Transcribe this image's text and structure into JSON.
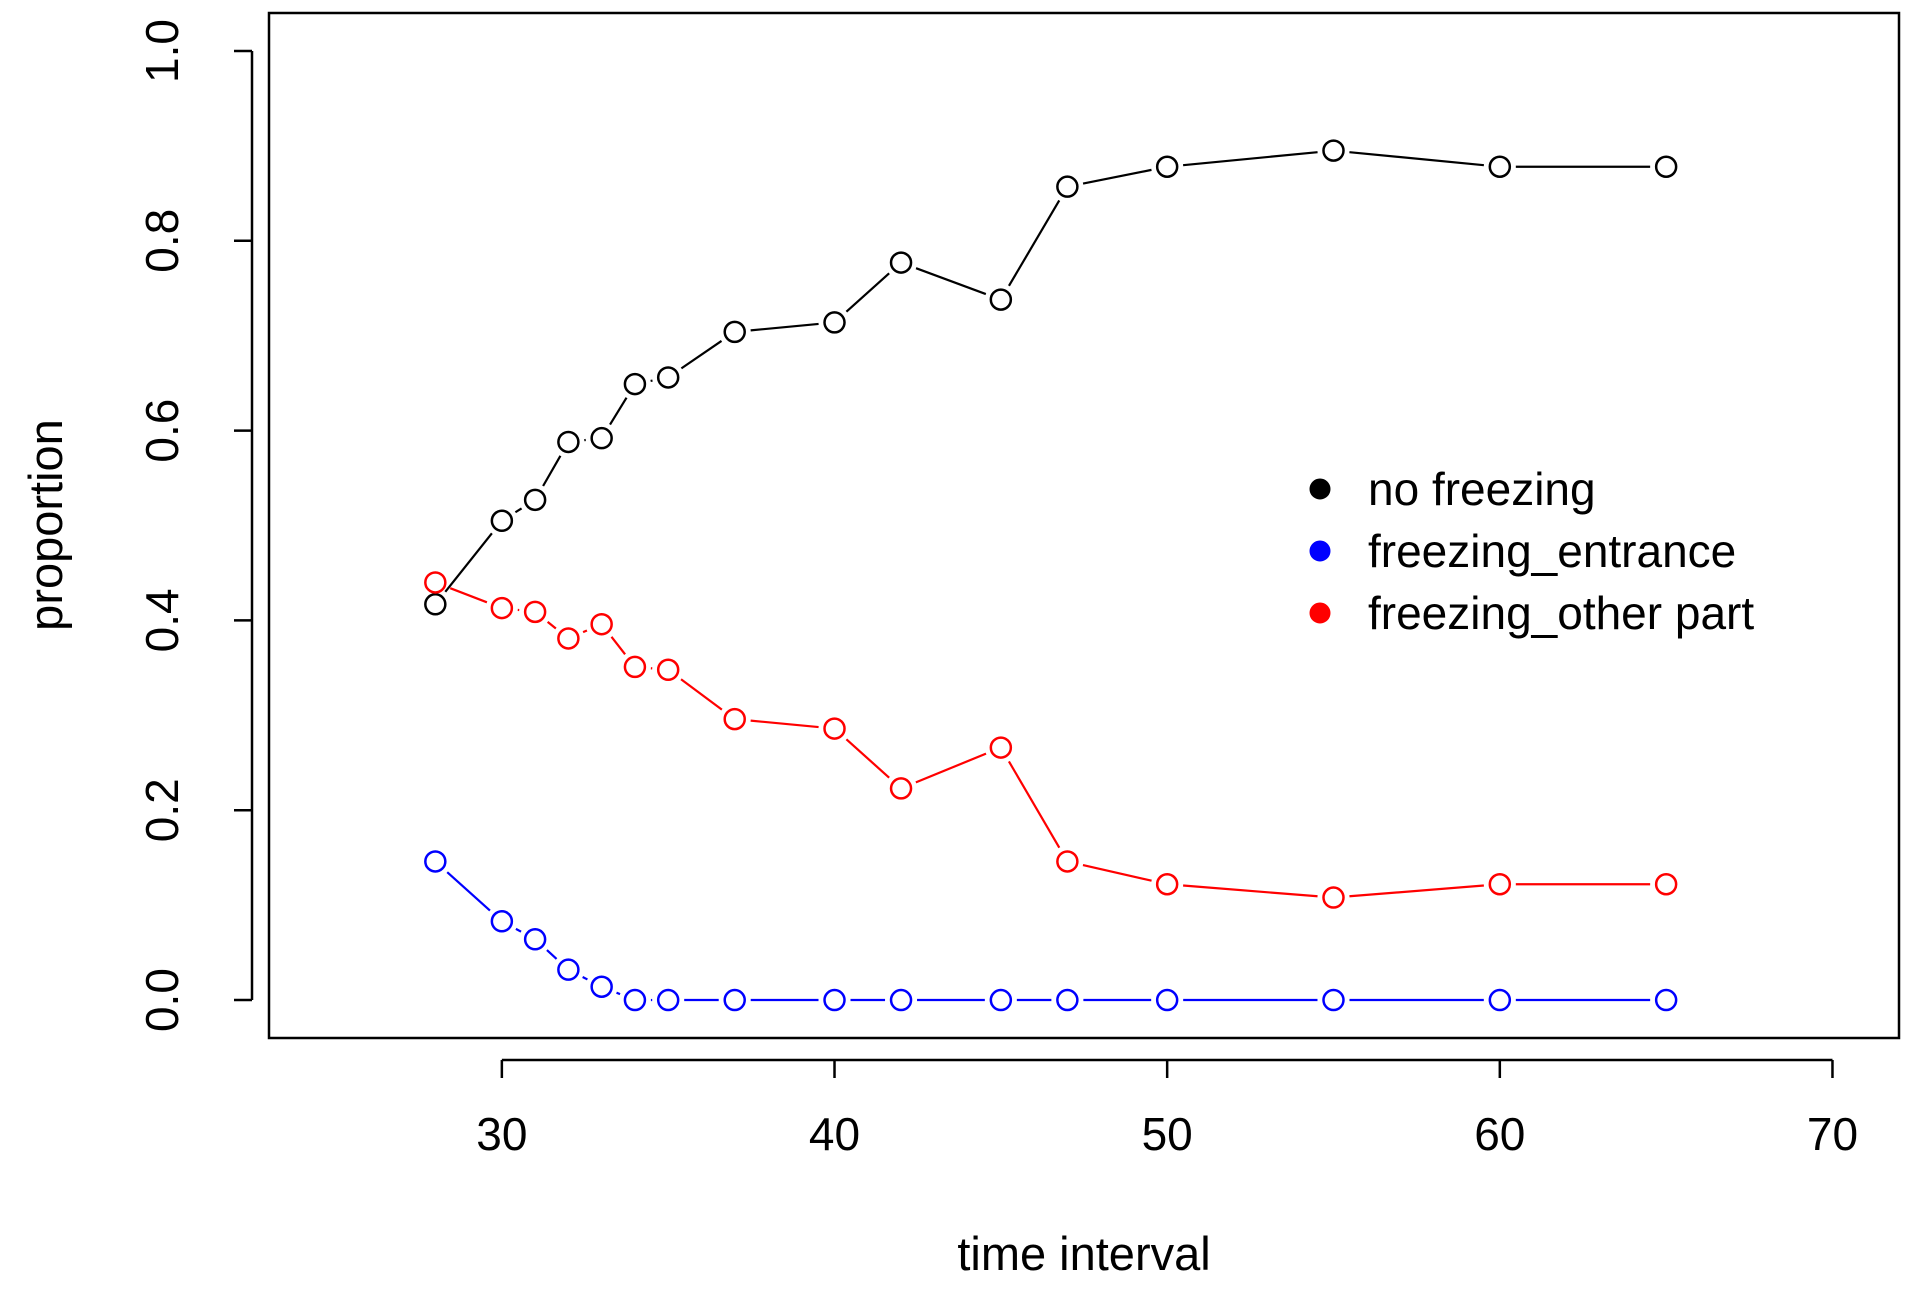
{
  "chart_data": {
    "type": "line",
    "title": "",
    "xlabel": "time interval",
    "ylabel": "proportion",
    "xlim": [
      23,
      72
    ],
    "ylim": [
      -0.04,
      1.04
    ],
    "xticks": [
      30,
      40,
      50,
      60,
      70
    ],
    "yticks": [
      0.0,
      0.2,
      0.4,
      0.6,
      0.8,
      1.0
    ],
    "xtick_labels": [
      "30",
      "40",
      "50",
      "60",
      "70"
    ],
    "ytick_labels": [
      "0.0",
      "0.2",
      "0.4",
      "0.6",
      "0.8",
      "1.0"
    ],
    "grid": false,
    "legend_position": "right",
    "x": [
      28,
      30,
      31,
      32,
      33,
      34,
      35,
      37,
      40,
      42,
      45,
      47,
      50,
      55,
      60,
      65
    ],
    "series": [
      {
        "name": "no freezing",
        "color": "#000000",
        "values": [
          0.417,
          0.505,
          0.527,
          0.588,
          0.592,
          0.649,
          0.656,
          0.704,
          0.714,
          0.777,
          0.738,
          0.857,
          0.878,
          0.895,
          0.878,
          0.878
        ]
      },
      {
        "name": "freezing_entrance",
        "color": "#0000ff",
        "values": [
          0.146,
          0.083,
          0.064,
          0.032,
          0.014,
          0.0,
          0.0,
          0.0,
          0.0,
          0.0,
          0.0,
          0.0,
          0.0,
          0.0,
          0.0,
          0.0
        ]
      },
      {
        "name": "freezing_other part",
        "color": "#ff0000",
        "values": [
          0.44,
          0.413,
          0.409,
          0.381,
          0.396,
          0.351,
          0.348,
          0.296,
          0.286,
          0.223,
          0.266,
          0.146,
          0.122,
          0.108,
          0.122,
          0.122
        ]
      }
    ]
  }
}
